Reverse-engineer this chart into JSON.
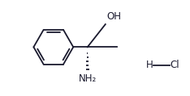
{
  "bg_color": "#ffffff",
  "line_color": "#1a1a2e",
  "figsize": [
    2.34,
    1.19
  ],
  "dpi": 100,
  "oh_label": "OH",
  "nh2_label": "NH₂",
  "hcl_h": "H",
  "hcl_cl": "Cl"
}
